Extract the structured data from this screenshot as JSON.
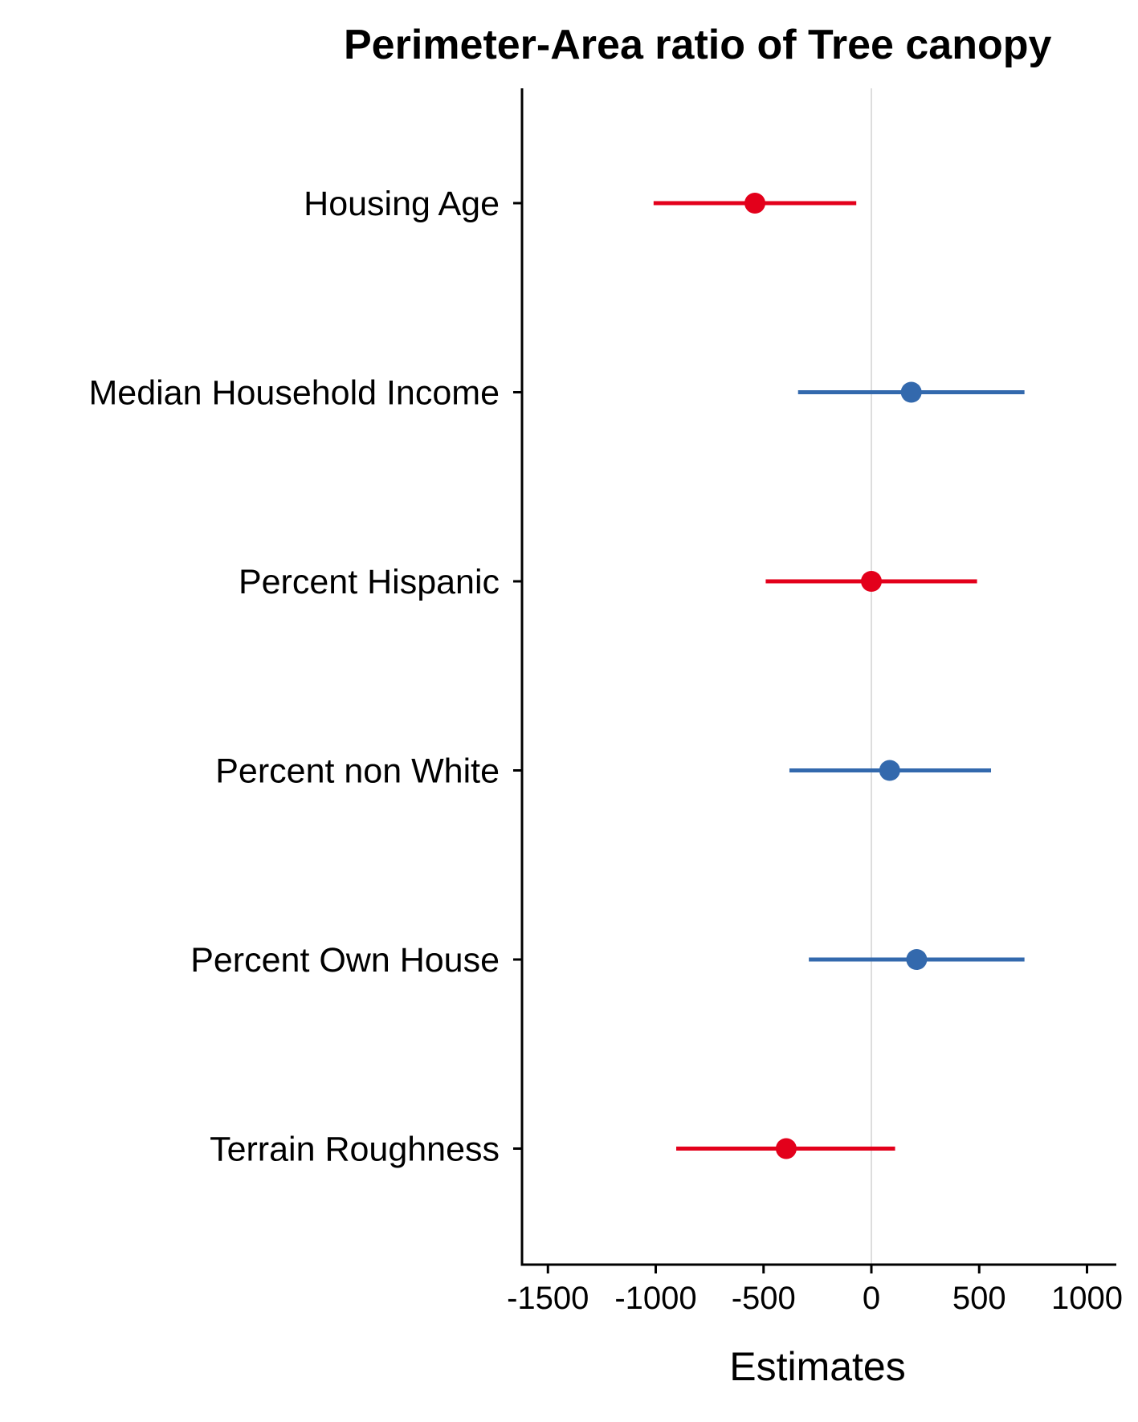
{
  "chart_data": {
    "type": "scatter",
    "subtype": "coefficient-plot-with-intervals",
    "title": "Perimeter-Area ratio of Tree canopy",
    "xlabel": "Estimates",
    "ylabel": "",
    "xlim": [
      -1630,
      1130
    ],
    "xticks": [
      -1500,
      -1000,
      -500,
      0,
      500,
      1000
    ],
    "xtick_labels": [
      "-1500",
      "-1000",
      "-500",
      "0",
      "500",
      "1000"
    ],
    "reference_line": 0,
    "grid": false,
    "legend": "none",
    "colors": {
      "negative": "#e3001b",
      "positive": "#3369ad",
      "reference": "#dddddd",
      "axis": "#000000"
    },
    "categories": [
      "Housing Age",
      "Median Household Income",
      "Percent Hispanic",
      "Percent non White",
      "Percent Own House",
      "Terrain Roughness"
    ],
    "estimates": [
      -540,
      185,
      0,
      85,
      210,
      -395
    ],
    "ci_low": [
      -1010,
      -340,
      -490,
      -380,
      -290,
      -905
    ],
    "ci_high": [
      -70,
      710,
      490,
      555,
      710,
      110
    ],
    "point_colors": [
      "#e3001b",
      "#3369ad",
      "#e3001b",
      "#3369ad",
      "#3369ad",
      "#e3001b"
    ]
  }
}
